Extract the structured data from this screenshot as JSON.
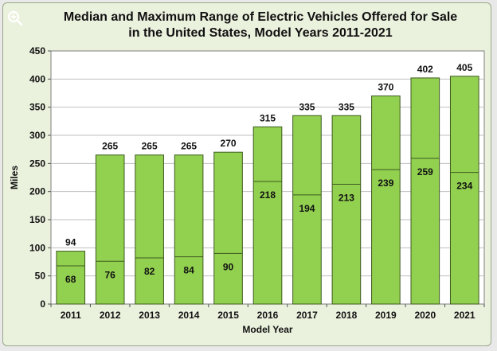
{
  "chart_data": {
    "type": "bar",
    "title_line1": "Median and Maximum Range of Electric Vehicles Offered for Sale",
    "title_line2": "in the United States, Model Years 2011-2021",
    "xlabel": "Model Year",
    "ylabel": "Miles",
    "ylim": [
      0,
      450
    ],
    "yticks": [
      0,
      50,
      100,
      150,
      200,
      250,
      300,
      350,
      400,
      450
    ],
    "grid": true,
    "categories": [
      "2011",
      "2012",
      "2013",
      "2014",
      "2015",
      "2016",
      "2017",
      "2018",
      "2019",
      "2020",
      "2021"
    ],
    "series": [
      {
        "values": [
          94,
          265,
          265,
          265,
          270,
          315,
          335,
          335,
          370,
          402,
          405
        ]
      },
      {
        "values": [
          68,
          76,
          82,
          84,
          90,
          218,
          194,
          213,
          239,
          259,
          234
        ]
      }
    ],
    "colors": {
      "bar": "#92d050",
      "bar_stroke": "#3d5a1e",
      "plot_bg": "#ffffff",
      "grid": "#bfbfbf",
      "frame_bg": "#eaf1dd"
    }
  },
  "ui": {
    "zoom_icon": "zoom-in-icon"
  }
}
